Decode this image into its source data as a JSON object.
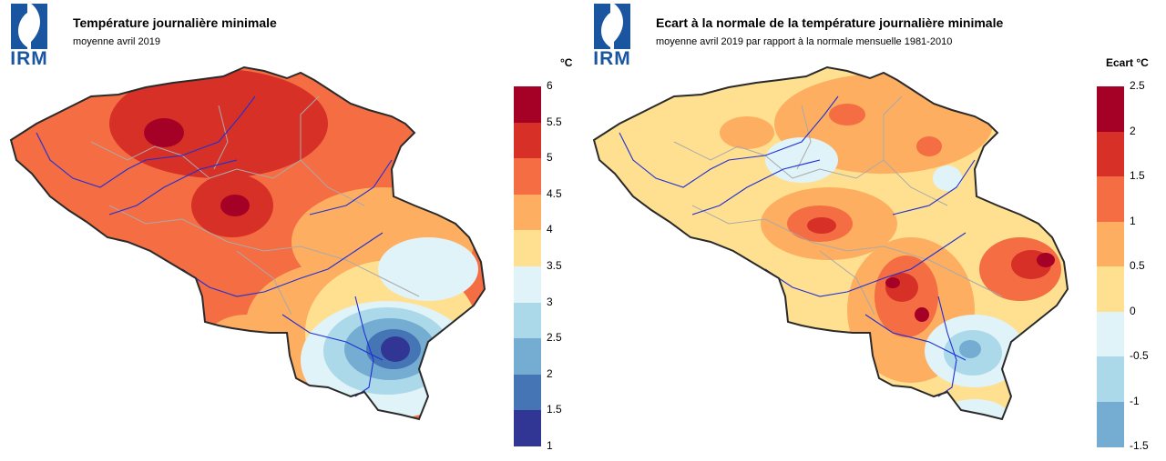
{
  "logo": {
    "text": "IRM",
    "color": "#1a55a0"
  },
  "panels": [
    {
      "id": "left",
      "title": "Température journalière minimale",
      "subtitle": "moyenne avril 2019",
      "unit": "°C",
      "legend": {
        "ticks": [
          "6",
          "5.5",
          "5",
          "4.5",
          "4",
          "3.5",
          "3",
          "2.5",
          "2",
          "1.5",
          "1"
        ],
        "colors": [
          "#a50026",
          "#d73027",
          "#f46d43",
          "#fdae61",
          "#fee090",
          "#e0f3f8",
          "#abd9e9",
          "#74add1",
          "#4575b4",
          "#313695"
        ]
      }
    },
    {
      "id": "right",
      "title": "Ecart à la normale de la température journalière minimale",
      "subtitle": "moyenne avril 2019 par rapport à la normale mensuelle 1981-2010",
      "unit": "Ecart °C",
      "legend": {
        "ticks": [
          "2.5",
          "2",
          "1.5",
          "1",
          "0.5",
          "0",
          "-0.5",
          "-1",
          "-1.5"
        ],
        "colors": [
          "#a50026",
          "#d73027",
          "#f46d43",
          "#fdae61",
          "#fee090",
          "#e0f3f8",
          "#abd9e9",
          "#74add1"
        ]
      }
    }
  ]
}
